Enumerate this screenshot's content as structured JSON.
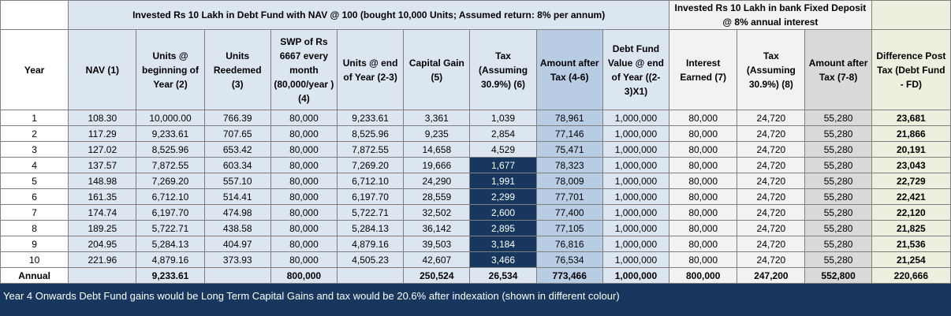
{
  "header": {
    "debt_group": "Invested Rs 10 Lakh in Debt Fund with NAV @ 100 (bought 10,000 Units; Assumed return: 8% per annum)",
    "fd_group": "Invested Rs 10 Lakh in bank Fixed Deposit @ 8% annual interest"
  },
  "columns": [
    "Year",
    "NAV (1)",
    "Units @ beginning of Year (2)",
    "Units Reedemed (3)",
    "SWP of Rs 6667 every month (80,000/year ) (4)",
    "Units @ end of Year (2-3)",
    "Capital Gain (5)",
    "Tax (Assuming 30.9%) (6)",
    "Amount after Tax (4-6)",
    "Debt Fund Value @ end of Year ((2-3)X1)",
    "Interest Earned (7)",
    "Tax (Assuming 30.9%) (8)",
    "Amount after Tax (7-8)",
    "Difference Post Tax (Debt Fund - FD)"
  ],
  "rows": [
    [
      "1",
      "108.30",
      "10,000.00",
      "766.39",
      "80,000",
      "9,233.61",
      "3,361",
      "1,039",
      "78,961",
      "1,000,000",
      "80,000",
      "24,720",
      "55,280",
      "23,681"
    ],
    [
      "2",
      "117.29",
      "9,233.61",
      "707.65",
      "80,000",
      "8,525.96",
      "9,235",
      "2,854",
      "77,146",
      "1,000,000",
      "80,000",
      "24,720",
      "55,280",
      "21,866"
    ],
    [
      "3",
      "127.02",
      "8,525.96",
      "653.42",
      "80,000",
      "7,872.55",
      "14,658",
      "4,529",
      "75,471",
      "1,000,000",
      "80,000",
      "24,720",
      "55,280",
      "20,191"
    ],
    [
      "4",
      "137.57",
      "7,872.55",
      "603.34",
      "80,000",
      "7,269.20",
      "19,666",
      "1,677",
      "78,323",
      "1,000,000",
      "80,000",
      "24,720",
      "55,280",
      "23,043"
    ],
    [
      "5",
      "148.98",
      "7,269.20",
      "557.10",
      "80,000",
      "6,712.10",
      "24,290",
      "1,991",
      "78,009",
      "1,000,000",
      "80,000",
      "24,720",
      "55,280",
      "22,729"
    ],
    [
      "6",
      "161.35",
      "6,712.10",
      "514.41",
      "80,000",
      "6,197.70",
      "28,559",
      "2,299",
      "77,701",
      "1,000,000",
      "80,000",
      "24,720",
      "55,280",
      "22,421"
    ],
    [
      "7",
      "174.74",
      "6,197.70",
      "474.98",
      "80,000",
      "5,722.71",
      "32,502",
      "2,600",
      "77,400",
      "1,000,000",
      "80,000",
      "24,720",
      "55,280",
      "22,120"
    ],
    [
      "8",
      "189.25",
      "5,722.71",
      "438.58",
      "80,000",
      "5,284.13",
      "36,142",
      "2,895",
      "77,105",
      "1,000,000",
      "80,000",
      "24,720",
      "55,280",
      "21,825"
    ],
    [
      "9",
      "204.95",
      "5,284.13",
      "404.97",
      "80,000",
      "4,879.16",
      "39,503",
      "3,184",
      "76,816",
      "1,000,000",
      "80,000",
      "24,720",
      "55,280",
      "21,536"
    ],
    [
      "10",
      "221.96",
      "4,879.16",
      "373.93",
      "80,000",
      "4,505.23",
      "42,607",
      "3,466",
      "76,534",
      "1,000,000",
      "80,000",
      "24,720",
      "55,280",
      "21,254"
    ]
  ],
  "annual": [
    "Annual",
    "",
    "9,233.61",
    "",
    "800,000",
    "",
    "250,524",
    "26,534",
    "773,466",
    "1,000,000",
    "800,000",
    "247,200",
    "552,800",
    "220,666"
  ],
  "note": "Year 4 Onwards Debt Fund gains would be Long Term Capital Gains and tax would be 20.6% after indexation (shown in different colour)",
  "colors": {
    "light_blue": "#dce6f1",
    "mid_blue": "#b8cce4",
    "navy_highlight": "#17375e",
    "light_grey": "#f2f2f2",
    "mid_grey": "#d9d9d9",
    "light_green": "#ebf1de"
  }
}
